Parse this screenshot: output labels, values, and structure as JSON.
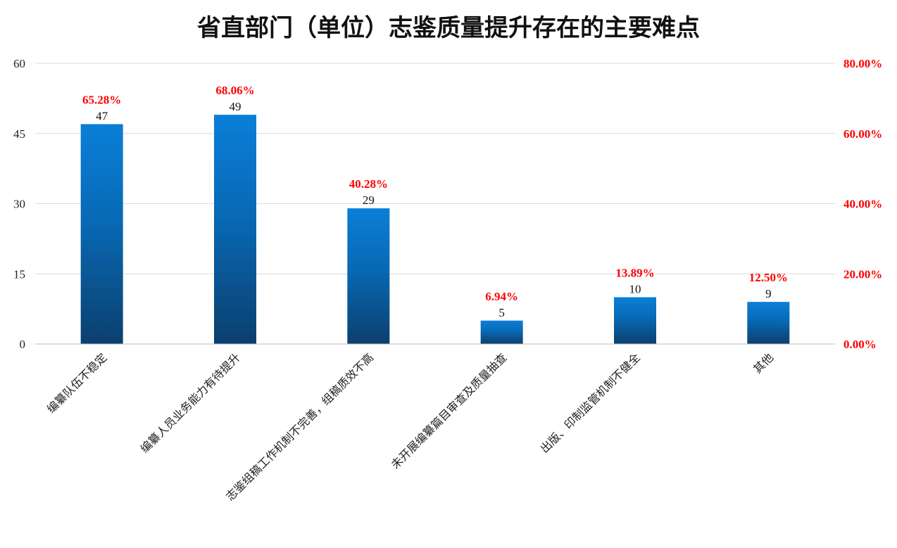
{
  "chart_data": {
    "type": "bar",
    "title": "省直部门（单位）志鉴质量提升存在的主要难点",
    "categories": [
      "编纂队伍不稳定",
      "编纂人员业务能力有待提升",
      "志鉴组稿工作机制不完善，组稿质效不高",
      "未开展编纂篇目审查及质量抽查",
      "出版、印制监管机制不健全",
      "其他"
    ],
    "series": [
      {
        "values": [
          47,
          49,
          29,
          5,
          10,
          9
        ]
      },
      {
        "values": [
          "65.28%",
          "68.06%",
          "40.28%",
          "6.94%",
          "13.89%",
          "12.50%"
        ]
      }
    ],
    "ylim": [
      0,
      60
    ],
    "yticks": [
      0,
      15,
      30,
      45,
      60
    ],
    "y2lim": [
      0,
      0.8
    ],
    "y2ticks": [
      "0.00%",
      "20.00%",
      "40.00%",
      "60.00%",
      "80.00%"
    ],
    "grid": true,
    "colors": {
      "bar_top": "#0a7fd8",
      "bar_bottom": "#0b3f6e",
      "percent_label": "#ff0000",
      "grid": "#d9d9d9"
    }
  }
}
